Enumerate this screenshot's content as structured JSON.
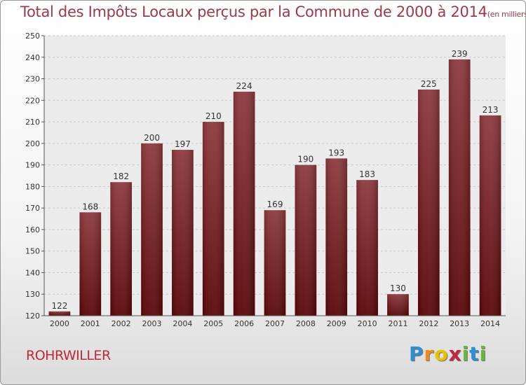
{
  "chart_data": {
    "type": "bar",
    "title": "Total des Impôts Locaux perçus par la Commune de 2000 à 2014",
    "unit_note": "(en milliers d'€)",
    "categories": [
      "2000",
      "2001",
      "2002",
      "2003",
      "2004",
      "2005",
      "2006",
      "2007",
      "2008",
      "2009",
      "2010",
      "2011",
      "2012",
      "2013",
      "2014"
    ],
    "values": [
      122,
      168,
      182,
      200,
      197,
      210,
      224,
      169,
      190,
      193,
      183,
      130,
      225,
      239,
      213
    ],
    "ylim": [
      120,
      250
    ],
    "yticks": [
      120,
      130,
      140,
      150,
      160,
      170,
      180,
      190,
      200,
      210,
      220,
      230,
      240,
      250
    ],
    "grid": true,
    "bar_color": "#6e1418"
  },
  "commune": "ROHRWILLER",
  "brand": {
    "letters": [
      "P",
      "r",
      "o",
      "x",
      "i",
      "t",
      "i"
    ],
    "colors": [
      "#2f8fd0",
      "#f08a1c",
      "#e8c200",
      "#c0283c",
      "#6db33f",
      "#2f8fd0",
      "#6db33f"
    ]
  }
}
